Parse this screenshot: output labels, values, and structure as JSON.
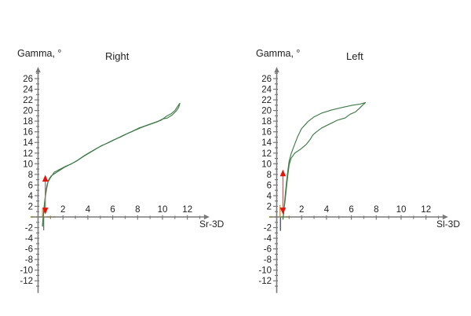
{
  "page": {
    "background": "#ffffff"
  },
  "chart_data": [
    {
      "id": "right",
      "type": "line",
      "title": "Right",
      "ylabel": "Gamma, °",
      "xlabel": "Sr-3D",
      "xlim": [
        -0.6,
        13.4
      ],
      "ylim": [
        -14.3,
        27.3
      ],
      "x_ticks_labeled": [
        2,
        4,
        6,
        8,
        10,
        12
      ],
      "y_ticks_labeled": [
        26,
        24,
        22,
        20,
        18,
        16,
        14,
        12,
        10,
        8,
        6,
        4,
        2,
        -2,
        -4,
        -6,
        -8,
        -10,
        -12
      ],
      "grid": false,
      "legend": false,
      "colors": {
        "curve": "#3e7b47",
        "axis": "#7a7a7a",
        "text": "#1f1f1f",
        "arrow_head": "#e8120c",
        "arrow_stem": "#b36b6b",
        "baseline_dash": "#ece48e",
        "drop_line": "#6f6f6f",
        "start_segment": "#cc9a4a"
      },
      "series": [
        {
          "name": "gamma-loop-branch-1",
          "points": [
            [
              0.35,
              -1.8
            ],
            [
              0.42,
              0.2
            ],
            [
              0.5,
              2.2
            ],
            [
              0.6,
              4.4
            ],
            [
              0.72,
              6.0
            ],
            [
              0.85,
              7.0
            ],
            [
              1.05,
              7.7
            ],
            [
              1.3,
              8.1
            ],
            [
              1.7,
              8.7
            ],
            [
              2.1,
              9.3
            ],
            [
              2.6,
              9.9
            ],
            [
              3.1,
              10.5
            ],
            [
              3.6,
              11.3
            ],
            [
              4.1,
              12.0
            ],
            [
              4.6,
              12.7
            ],
            [
              5.1,
              13.4
            ],
            [
              5.7,
              14.0
            ],
            [
              6.3,
              14.7
            ],
            [
              6.9,
              15.4
            ],
            [
              7.5,
              16.0
            ],
            [
              8.1,
              16.7
            ],
            [
              8.7,
              17.2
            ],
            [
              9.3,
              17.7
            ],
            [
              9.9,
              18.2
            ],
            [
              10.3,
              18.9
            ],
            [
              10.7,
              19.4
            ],
            [
              11.0,
              20.0
            ],
            [
              11.2,
              20.7
            ],
            [
              11.4,
              21.4
            ]
          ]
        },
        {
          "name": "gamma-loop-branch-2",
          "points": [
            [
              0.35,
              -1.8
            ],
            [
              0.45,
              0.8
            ],
            [
              0.55,
              3.2
            ],
            [
              0.68,
              5.2
            ],
            [
              0.8,
              6.6
            ],
            [
              1.0,
              7.4
            ],
            [
              1.3,
              8.4
            ],
            [
              1.7,
              8.9
            ],
            [
              2.2,
              9.5
            ],
            [
              2.7,
              10.0
            ],
            [
              3.2,
              10.7
            ],
            [
              3.7,
              11.5
            ],
            [
              4.2,
              12.2
            ],
            [
              4.8,
              13.0
            ],
            [
              5.4,
              13.7
            ],
            [
              6.0,
              14.4
            ],
            [
              6.6,
              15.0
            ],
            [
              7.2,
              15.7
            ],
            [
              7.8,
              16.3
            ],
            [
              8.4,
              16.9
            ],
            [
              9.0,
              17.4
            ],
            [
              9.6,
              17.9
            ],
            [
              10.0,
              18.4
            ],
            [
              10.4,
              18.6
            ],
            [
              10.8,
              19.2
            ],
            [
              11.1,
              19.9
            ],
            [
              11.3,
              20.6
            ],
            [
              11.4,
              21.4
            ]
          ]
        }
      ],
      "annotations": {
        "red_double_arrow": {
          "x": 0.58,
          "y1": 0.5,
          "y2": 7.9
        },
        "baseline_dash": {
          "y": 0,
          "x1": -0.62,
          "x2": 1.5
        },
        "drop_line": {
          "x": 0.45,
          "y1": -0.1,
          "y2": -2.5
        },
        "start_segment": {
          "x": 0.36,
          "y1": 0,
          "y2": 1.6
        }
      }
    },
    {
      "id": "left",
      "type": "line",
      "title": "Left",
      "ylabel": "Gamma, °",
      "xlabel": "Sl-3D",
      "xlim": [
        -0.6,
        13.4
      ],
      "ylim": [
        -14.3,
        27.3
      ],
      "x_ticks_labeled": [
        2,
        4,
        6,
        8,
        10,
        12
      ],
      "y_ticks_labeled": [
        26,
        24,
        22,
        20,
        18,
        16,
        14,
        12,
        10,
        8,
        6,
        4,
        2,
        -2,
        -4,
        -6,
        -8,
        -10,
        -12
      ],
      "grid": false,
      "legend": false,
      "colors": {
        "curve": "#3e7b47",
        "axis": "#7a7a7a",
        "text": "#1f1f1f",
        "arrow_head": "#e8120c",
        "arrow_stem": "#b36b6b",
        "baseline_dash": "#ece48e",
        "drop_line": "#3f4b78",
        "start_segment": "#cc8a3a"
      },
      "series": [
        {
          "name": "gamma-loop-upper",
          "points": [
            [
              0.5,
              -0.5
            ],
            [
              0.55,
              0.8
            ],
            [
              0.62,
              2.5
            ],
            [
              0.7,
              4.5
            ],
            [
              0.8,
              6.8
            ],
            [
              0.9,
              8.8
            ],
            [
              1.0,
              10.5
            ],
            [
              1.15,
              11.8
            ],
            [
              1.4,
              13.4
            ],
            [
              1.7,
              15.2
            ],
            [
              2.0,
              16.6
            ],
            [
              2.5,
              17.9
            ],
            [
              3.0,
              18.8
            ],
            [
              3.6,
              19.5
            ],
            [
              4.4,
              20.1
            ],
            [
              5.3,
              20.6
            ],
            [
              6.1,
              21.0
            ],
            [
              6.7,
              21.2
            ],
            [
              7.15,
              21.5
            ]
          ]
        },
        {
          "name": "gamma-loop-lower",
          "points": [
            [
              0.5,
              -0.5
            ],
            [
              0.58,
              1.2
            ],
            [
              0.68,
              3.2
            ],
            [
              0.78,
              5.5
            ],
            [
              0.9,
              8.0
            ],
            [
              1.0,
              9.8
            ],
            [
              1.15,
              11.0
            ],
            [
              1.45,
              12.0
            ],
            [
              1.9,
              12.7
            ],
            [
              2.4,
              13.7
            ],
            [
              2.7,
              14.6
            ],
            [
              2.9,
              15.4
            ],
            [
              3.2,
              16.0
            ],
            [
              3.6,
              16.7
            ],
            [
              4.2,
              17.4
            ],
            [
              4.9,
              18.2
            ],
            [
              5.5,
              18.6
            ],
            [
              5.9,
              19.3
            ],
            [
              6.3,
              19.7
            ],
            [
              6.6,
              20.3
            ],
            [
              6.9,
              21.0
            ],
            [
              7.15,
              21.5
            ]
          ]
        }
      ],
      "annotations": {
        "red_double_arrow": {
          "x": 0.5,
          "y1": 0.5,
          "y2": 8.9
        },
        "baseline_dash": {
          "y": 0,
          "x1": -0.62,
          "x2": 1.2
        },
        "drop_line": {
          "x": 0.3,
          "y1": -0.1,
          "y2": -2.6
        },
        "start_segment": {
          "x": 0.27,
          "y1": 0,
          "y2": 2.2
        }
      }
    }
  ]
}
